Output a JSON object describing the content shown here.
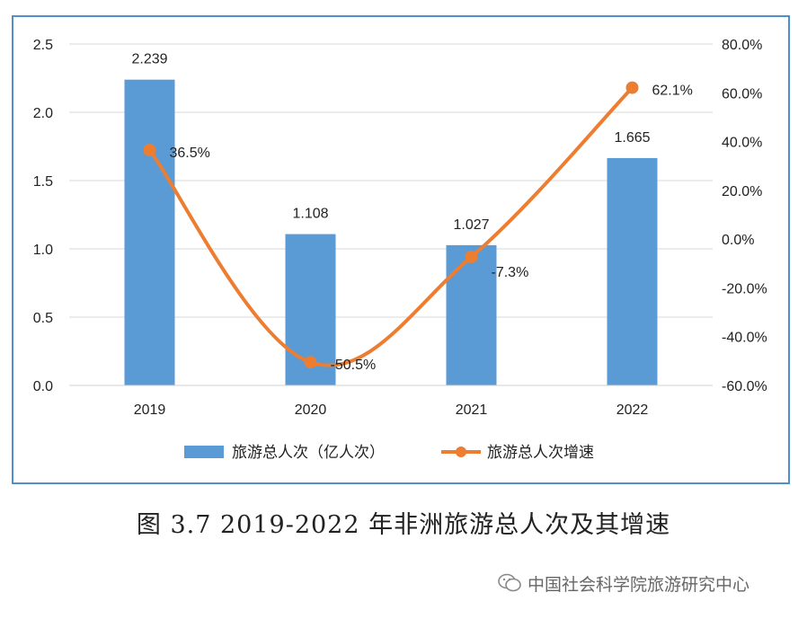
{
  "chart_data": {
    "type": "bar+line",
    "categories": [
      "2019",
      "2020",
      "2021",
      "2022"
    ],
    "series": [
      {
        "name": "旅游总人次（亿人次）",
        "type": "bar",
        "axis": "left",
        "values": [
          2.239,
          1.108,
          1.027,
          1.665
        ],
        "labels": [
          "2.239",
          "1.108",
          "1.027",
          "1.665"
        ],
        "color": "#5b9bd5"
      },
      {
        "name": "旅游总人次增速",
        "type": "line",
        "axis": "right",
        "smooth": true,
        "values": [
          36.5,
          -50.5,
          -7.3,
          62.1
        ],
        "labels": [
          "36.5%",
          "-50.5%",
          "-7.3%",
          "62.1%"
        ],
        "color": "#ed7d31"
      }
    ],
    "y_left": {
      "min": 0,
      "max": 2.5,
      "ticks": [
        "0.0",
        "0.5",
        "1.0",
        "1.5",
        "2.0",
        "2.5"
      ]
    },
    "y_right": {
      "min": -60,
      "max": 80,
      "ticks": [
        "-60.0%",
        "-40.0%",
        "-20.0%",
        "0.0%",
        "20.0%",
        "40.0%",
        "60.0%",
        "80.0%"
      ]
    },
    "grid": true,
    "legend_position": "bottom"
  },
  "caption": "图 3.7 2019-2022 年非洲旅游总人次及其增速",
  "watermark": "中国社会科学院旅游研究中心"
}
